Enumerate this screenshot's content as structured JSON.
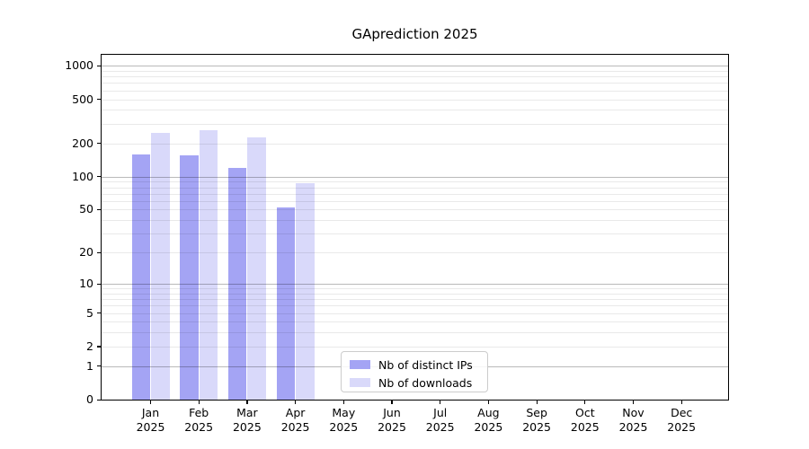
{
  "chart_data": {
    "type": "bar",
    "title": "GAprediction 2025",
    "xlabel": "",
    "ylabel": "",
    "y_scale": "log1p",
    "ylim": [
      0,
      1250
    ],
    "grid": true,
    "grid_over_bars": true,
    "legend_position": "lower center-left inside plot",
    "categories": [
      "Jan 2025",
      "Feb 2025",
      "Mar 2025",
      "Apr 2025",
      "May 2025",
      "Jun 2025",
      "Jul 2025",
      "Aug 2025",
      "Sep 2025",
      "Oct 2025",
      "Nov 2025",
      "Dec 2025"
    ],
    "x_tick_labels": [
      {
        "month": "Jan",
        "year": "2025"
      },
      {
        "month": "Feb",
        "year": "2025"
      },
      {
        "month": "Mar",
        "year": "2025"
      },
      {
        "month": "Apr",
        "year": "2025"
      },
      {
        "month": "May",
        "year": "2025"
      },
      {
        "month": "Jun",
        "year": "2025"
      },
      {
        "month": "Jul",
        "year": "2025"
      },
      {
        "month": "Aug",
        "year": "2025"
      },
      {
        "month": "Sep",
        "year": "2025"
      },
      {
        "month": "Oct",
        "year": "2025"
      },
      {
        "month": "Nov",
        "year": "2025"
      },
      {
        "month": "Dec",
        "year": "2025"
      }
    ],
    "y_ticks": [
      {
        "value": 0,
        "label": "0"
      },
      {
        "value": 1,
        "label": "1"
      },
      {
        "value": 2,
        "label": "2"
      },
      {
        "value": 5,
        "label": "5"
      },
      {
        "value": 10,
        "label": "10"
      },
      {
        "value": 20,
        "label": "20"
      },
      {
        "value": 50,
        "label": "50"
      },
      {
        "value": 100,
        "label": "100"
      },
      {
        "value": 200,
        "label": "200"
      },
      {
        "value": 500,
        "label": "500"
      },
      {
        "value": 1000,
        "label": "1000"
      }
    ],
    "series": [
      {
        "name": "Nb of distinct IPs",
        "color": "#a4a4f4",
        "values": [
          160,
          155,
          120,
          52,
          0,
          0,
          0,
          0,
          0,
          0,
          0,
          0
        ]
      },
      {
        "name": "Nb of downloads",
        "color": "#d9d9fa",
        "values": [
          250,
          265,
          225,
          87,
          0,
          0,
          0,
          0,
          0,
          0,
          0,
          0
        ]
      }
    ]
  },
  "colors": {
    "background": "#ffffff",
    "spine": "#000000",
    "major_grid": "rgba(0,0,0,0.27)",
    "minor_grid": "rgba(0,0,0,0.085)",
    "text": "#000000",
    "legend_border": "#cccccc"
  }
}
